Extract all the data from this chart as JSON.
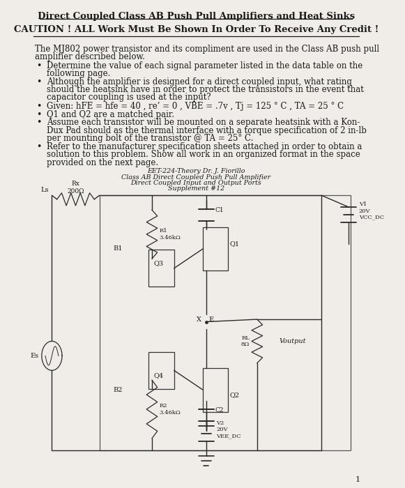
{
  "title": "Direct Coupled Class AB Push Pull Amplifiers and Heat Sinks",
  "caution": "CAUTION ! ALL Work Must Be Shown In Order To Receive Any Credit !",
  "intro_line1": "The MJ802 power transistor and its compliment are used in the Class AB push pull",
  "intro_line2": "amplifier described below.",
  "bullet1_line1": "Determine the value of each signal parameter listed in the data table on the",
  "bullet1_line2": "following page.",
  "bullet2_line1": "Although the amplifier is designed for a direct coupled input, what rating",
  "bullet2_line2": "should the heatsink have in order to protect the transistors in the event that",
  "bullet2_line3": "capacitor coupling is used at the input?",
  "bullet3": "Given: hFE = hfe = 40 , re’ = 0 , VBE = .7v , Tj = 125 ° C , TA = 25 ° C",
  "bullet4": "Q1 and Q2 are a matched pair.",
  "bullet5_line1": "Assume each transistor will be mounted on a separate heatsink with a Kon-",
  "bullet5_line2": "Dux Pad should as the thermal interface with a torque specification of 2 in-lb",
  "bullet5_line3": "per mounting bolt of the transistor @ TA = 25° C.",
  "bullet6_line1": "Refer to the manufacturer specification sheets attached in order to obtain a",
  "bullet6_line2": "solution to this problem. Show all work in an organized format in the space",
  "bullet6_line3": "provided on the next page.",
  "cap1": "EET-224-Theory Dr. J. Fiorillo",
  "cap2": "Class AB Direct Coupled Push Pull Amplifier",
  "cap3": "Direct Coupled Input and Output Ports",
  "cap4": "Supplement #12",
  "bg_color": "#f0ede8",
  "text_color": "#1a1a1a",
  "page_number": "1"
}
